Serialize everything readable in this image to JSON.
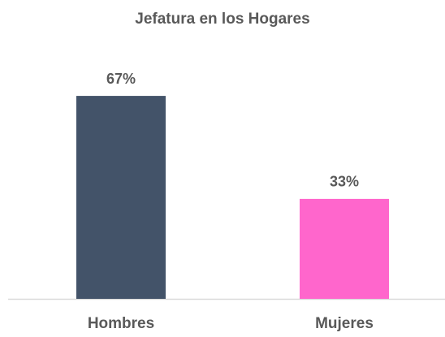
{
  "chart_data": {
    "type": "bar",
    "title": "Jefatura en los Hogares",
    "categories": [
      "Hombres",
      "Mujeres"
    ],
    "values": [
      67,
      33
    ],
    "value_labels": [
      "67%",
      "33%"
    ],
    "colors": [
      "#435369",
      "#ff66cc"
    ]
  }
}
